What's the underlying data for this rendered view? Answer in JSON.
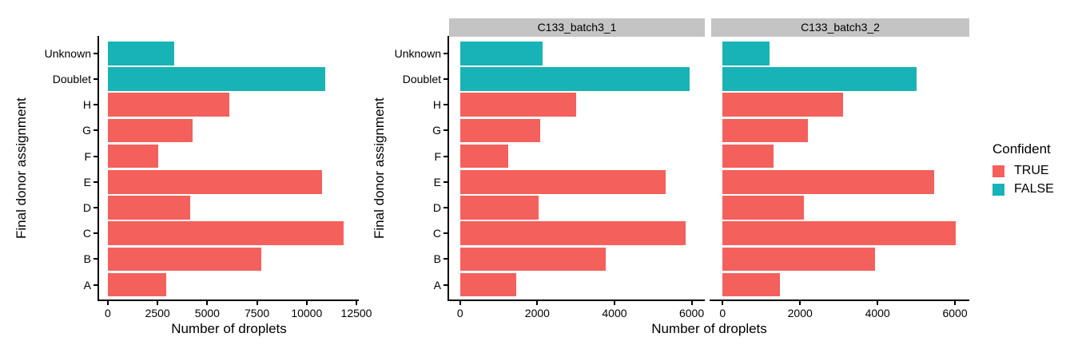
{
  "colors": {
    "confident_true": "#F4605B",
    "confident_false": "#18B3B6",
    "strip_background": "#C4C4C4",
    "axis": "#000000",
    "background": "#FFFFFF"
  },
  "chart_data": {
    "type": "bar",
    "orientation": "horizontal",
    "categories_top_to_bottom": [
      "Unknown",
      "Doublet",
      "H",
      "G",
      "F",
      "E",
      "D",
      "C",
      "B",
      "A"
    ],
    "color_by_category": [
      "FALSE",
      "FALSE",
      "TRUE",
      "TRUE",
      "TRUE",
      "TRUE",
      "TRUE",
      "TRUE",
      "TRUE",
      "TRUE"
    ],
    "legend": {
      "title": "Confident",
      "entries": [
        {
          "label": "TRUE",
          "color": "#F4605B"
        },
        {
          "label": "FALSE",
          "color": "#18B3B6"
        }
      ],
      "position": "right"
    },
    "facet_xlabel": "Number of droplets",
    "facet_ylabel": "Final donor assignment",
    "panels": [
      {
        "id": "combined",
        "facet_label": "",
        "xlabel": "Number of droplets",
        "ylabel": "Final donor assignment",
        "show_y_labels": true,
        "show_y_axis_line": true,
        "values": [
          3350,
          10950,
          6110,
          4280,
          2550,
          10790,
          4140,
          11870,
          7710,
          2930
        ],
        "x_ticks": [
          0,
          2500,
          5000,
          7500,
          10000,
          12500
        ],
        "x_domain": [
          -440,
          12620
        ],
        "grid": "off"
      },
      {
        "id": "facet-1",
        "facet_label": "C133_batch3_1",
        "show_y_labels": true,
        "show_y_axis_line": true,
        "values": [
          2140,
          5950,
          3000,
          2080,
          1240,
          5330,
          2040,
          5850,
          3770,
          1450
        ],
        "x_ticks": [
          0,
          2000,
          4000,
          6000
        ],
        "x_domain": [
          -285,
          6340
        ],
        "grid": "off"
      },
      {
        "id": "facet-2",
        "facet_label": "C133_batch3_2",
        "show_y_labels": false,
        "show_y_axis_line": false,
        "values": [
          1210,
          5000,
          3110,
          2200,
          1310,
          5460,
          2100,
          6020,
          3940,
          1480
        ],
        "x_ticks": [
          0,
          2000,
          4000,
          6000
        ],
        "x_domain": [
          -295,
          6370
        ],
        "grid": "off"
      }
    ]
  }
}
